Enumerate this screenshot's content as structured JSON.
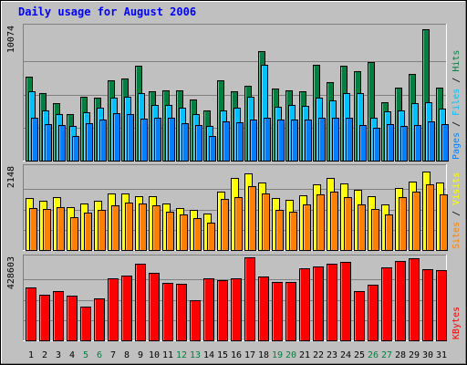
{
  "chart_data": {
    "type": "bar",
    "title": "Daily usage for August 2006",
    "categories": [
      "1",
      "2",
      "3",
      "4",
      "5",
      "6",
      "7",
      "8",
      "9",
      "10",
      "11",
      "12",
      "13",
      "14",
      "15",
      "16",
      "17",
      "18",
      "19",
      "20",
      "21",
      "22",
      "23",
      "24",
      "25",
      "26",
      "27",
      "28",
      "29",
      "30",
      "31"
    ],
    "weekend_days": [
      5,
      6,
      12,
      13,
      19,
      20,
      26,
      27
    ],
    "panels": [
      {
        "id": "hits",
        "ymax_label": "10074",
        "ymax": 10074,
        "legend": [
          "Pages",
          "Files",
          "Hits"
        ],
        "series": [
          {
            "name": "Hits",
            "color": "#008040",
            "values": [
              6300,
              5100,
              4350,
              3500,
              4800,
              4750,
              6000,
              6200,
              7100,
              5200,
              5250,
              5300,
              4600,
              3800,
              6000,
              5200,
              5600,
              8200,
              5400,
              5300,
              5200,
              7200,
              5900,
              7100,
              6700,
              7400,
              4400,
              5500,
              6500,
              9900,
              5500
            ]
          },
          {
            "name": "Files",
            "color": "#00c0ff",
            "values": [
              5200,
              3750,
              3500,
              2600,
              3650,
              3950,
              4700,
              4800,
              5100,
              4200,
              4150,
              4000,
              3500,
              2600,
              3750,
              3950,
              4800,
              7200,
              4050,
              4150,
              4100,
              4700,
              4500,
              5100,
              5100,
              3200,
              3700,
              3800,
              4300,
              4400,
              3900
            ]
          },
          {
            "name": "Pages",
            "color": "#0080ff",
            "values": [
              3200,
              2750,
              2650,
              1850,
              2800,
              3100,
              3550,
              3500,
              3150,
              3250,
              3250,
              2800,
              2650,
              1850,
              2950,
              2900,
              3050,
              3200,
              3050,
              3050,
              3050,
              3250,
              3200,
              3200,
              2650,
              2450,
              2750,
              2600,
              2700,
              2950,
              2750
            ]
          }
        ]
      },
      {
        "id": "visits",
        "ymax_label": "2148",
        "ymax": 2148,
        "legend": [
          "Sites",
          "Visits"
        ],
        "series": [
          {
            "name": "Visits",
            "color": "#ffff00",
            "values": [
              1340,
              1280,
              1360,
              1110,
              1210,
              1270,
              1470,
              1460,
              1400,
              1390,
              1210,
              1090,
              1030,
              940,
              1510,
              1870,
              1990,
              1740,
              1350,
              1300,
              1410,
              1710,
              1860,
              1720,
              1560,
              1390,
              1180,
              1610,
              1760,
              2020,
              1750
            ]
          },
          {
            "name": "Sites",
            "color": "#ff8000",
            "values": [
              1090,
              1060,
              1110,
              860,
              960,
              1040,
              1150,
              1230,
              1200,
              1160,
              1000,
              910,
              830,
              710,
              1330,
              1380,
              1650,
              1470,
              1040,
              1000,
              1180,
              1430,
              1510,
              1360,
              1170,
              1070,
              920,
              1380,
              1500,
              1690,
              1450
            ]
          }
        ]
      },
      {
        "id": "kbytes",
        "ymax_label": "428603",
        "ymax": 428603,
        "legend": [
          "KBytes"
        ],
        "series": [
          {
            "name": "KBytes",
            "color": "#ff0000",
            "values": [
              272000,
              236000,
              255000,
              232000,
              173000,
              215000,
              320000,
              334000,
              395000,
              348000,
              297000,
              290000,
              205000,
              322000,
              313000,
              322000,
              428000,
              330000,
              300000,
              302000,
              370000,
              380000,
              395000,
              406000,
              255000,
              286000,
              378000,
              410000,
              424000,
              368000,
              363000
            ]
          }
        ]
      }
    ]
  },
  "colors": {
    "page_bg": "#c0c0c0",
    "plot_bg": "#c0c0c0",
    "title": "#0000ff",
    "weekday_label": "#000000",
    "weekend_label": "#008040",
    "gridline": "#808080",
    "axis_label": "#000000"
  }
}
